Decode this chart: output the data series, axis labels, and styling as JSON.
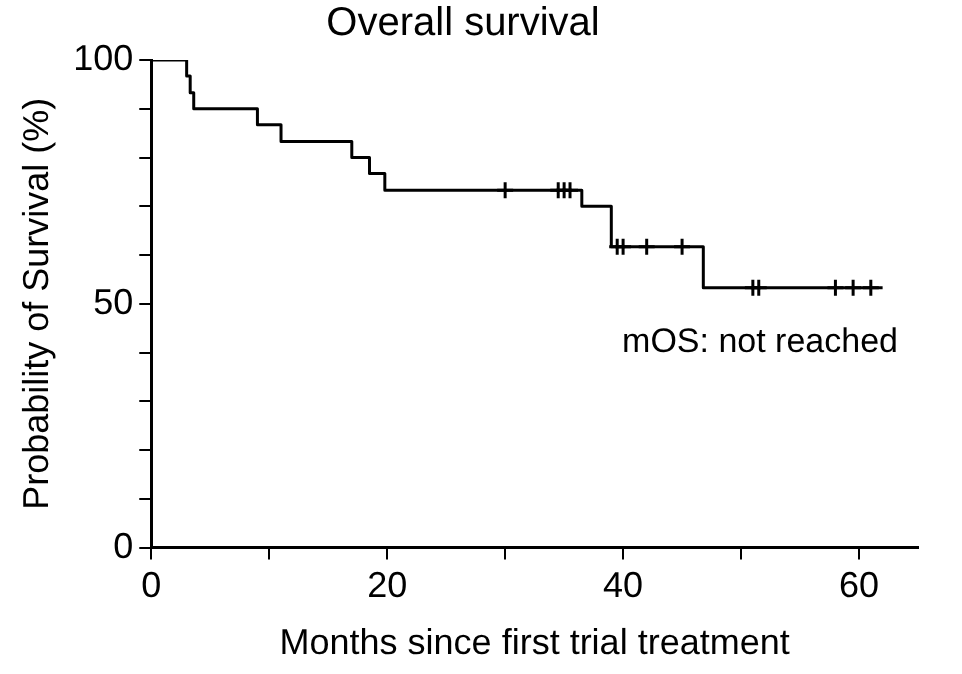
{
  "chart_data": {
    "type": "step",
    "title": "Overall survival",
    "xlabel": "Months since first trial treatment",
    "ylabel": "Probability of Survival (%)",
    "annotations": [
      "mOS: not reached"
    ],
    "series": [
      {
        "type": "step",
        "color": "#000000",
        "x": [
          0,
          3,
          3.3,
          3.6,
          9,
          11,
          17,
          18.5,
          19.8,
          36.5,
          39,
          46.8,
          62
        ],
        "values": [
          100,
          96.7,
          93.3,
          90,
          86.7,
          83.3,
          80,
          76.7,
          73.3,
          70,
          61.7,
          53.3,
          53.3
        ]
      },
      {
        "type": "scatter",
        "color": "#000000",
        "marker": "cross",
        "x": [
          30,
          34.5,
          35,
          35.5,
          39.5,
          40,
          42,
          45,
          51,
          51.5,
          58,
          59.5,
          61
        ],
        "values": [
          73.3,
          73.3,
          73.3,
          73.3,
          61.7,
          61.7,
          61.7,
          61.7,
          53.3,
          53.3,
          53.3,
          53.3,
          53.3
        ]
      }
    ],
    "xlim": [
      0,
      65
    ],
    "xticks": [
      0,
      {
        "value": 10,
        "label": null
      },
      20,
      {
        "value": 30,
        "label": null
      },
      40,
      {
        "value": 50,
        "label": null
      },
      60
    ],
    "ylim": [
      0,
      100
    ],
    "yticks": [
      0,
      {
        "value": 10,
        "label": null
      },
      {
        "value": 20,
        "label": null
      },
      {
        "value": 30,
        "label": null
      },
      {
        "value": 40,
        "label": null
      },
      50,
      {
        "value": 60,
        "label": null
      },
      {
        "value": 70,
        "label": null
      },
      {
        "value": 80,
        "label": null
      },
      {
        "value": 90,
        "label": null
      },
      100
    ],
    "grid": false,
    "legend": false
  }
}
